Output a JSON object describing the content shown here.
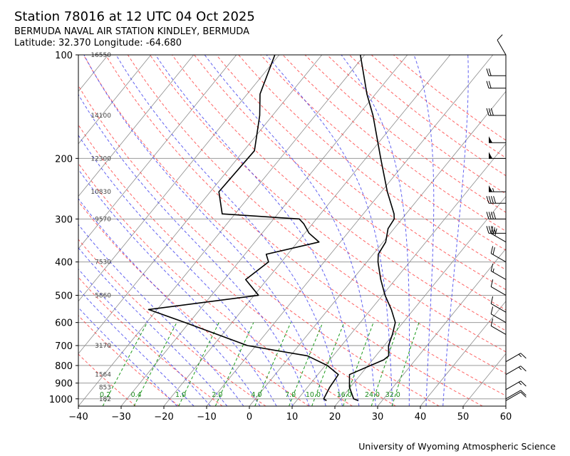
{
  "header": {
    "title": "Station 78016 at 12 UTC 04 Oct 2025",
    "station_name": "BERMUDA NAVAL AIR STATION KINDLEY, BERMUDA",
    "coordinates": "Latitude: 32.370 Longitude: -64.680"
  },
  "footer": {
    "credit": "University of Wyoming Atmospheric Science"
  },
  "chart_data": {
    "type": "skew-t log-p",
    "x_axis": {
      "range": [
        -40,
        60
      ],
      "ticks": [
        -40,
        -30,
        -20,
        -10,
        0,
        10,
        20,
        30,
        40,
        50,
        60
      ]
    },
    "y_axis": {
      "scale": "log",
      "range": [
        1050,
        100
      ],
      "ticks": [
        100,
        200,
        300,
        400,
        500,
        600,
        700,
        800,
        900,
        1000
      ]
    },
    "height_labels": [
      {
        "p": 100,
        "label": "16550"
      },
      {
        "p": 150,
        "label": "14100"
      },
      {
        "p": 200,
        "label": "12300"
      },
      {
        "p": 250,
        "label": "10830"
      },
      {
        "p": 300,
        "label": "9570"
      },
      {
        "p": 400,
        "label": "7530"
      },
      {
        "p": 500,
        "label": "5860"
      },
      {
        "p": 700,
        "label": "3170"
      },
      {
        "p": 850,
        "label": "1564"
      },
      {
        "p": 925,
        "label": "853"
      },
      {
        "p": 1000,
        "label": "182"
      }
    ],
    "mixing_ratio_labels": [
      "0.2",
      "0.4",
      "1.0",
      "2.0",
      "4.0",
      "7.0",
      "10.0",
      "16.0",
      "24.0",
      "32.0"
    ],
    "temperature": [
      {
        "p": 1012,
        "t": 24.4
      },
      {
        "p": 1000,
        "t": 23.0
      },
      {
        "p": 925,
        "t": 19.8
      },
      {
        "p": 850,
        "t": 17.4
      },
      {
        "p": 770,
        "t": 22.6
      },
      {
        "p": 750,
        "t": 23.0
      },
      {
        "p": 700,
        "t": 21.0
      },
      {
        "p": 650,
        "t": 19.8
      },
      {
        "p": 600,
        "t": 18.2
      },
      {
        "p": 550,
        "t": 14.8
      },
      {
        "p": 500,
        "t": 10.6
      },
      {
        "p": 450,
        "t": 6.6
      },
      {
        "p": 400,
        "t": 2.6
      },
      {
        "p": 380,
        "t": 1.2
      },
      {
        "p": 350,
        "t": 0.6
      },
      {
        "p": 320,
        "t": -1.4
      },
      {
        "p": 300,
        "t": -1.8
      },
      {
        "p": 290,
        "t": -2.8
      },
      {
        "p": 250,
        "t": -8.6
      },
      {
        "p": 200,
        "t": -16.5
      },
      {
        "p": 150,
        "t": -26.5
      },
      {
        "p": 130,
        "t": -32.0
      },
      {
        "p": 100,
        "t": -41.0
      }
    ],
    "dewpoint": [
      {
        "p": 1012,
        "t": 17.0
      },
      {
        "p": 1000,
        "t": 16.0
      },
      {
        "p": 925,
        "t": 15.2
      },
      {
        "p": 850,
        "t": 14.8
      },
      {
        "p": 800,
        "t": 10.5
      },
      {
        "p": 750,
        "t": 4.0
      },
      {
        "p": 700,
        "t": -12.0
      },
      {
        "p": 600,
        "t": -31.0
      },
      {
        "p": 550,
        "t": -42.0
      },
      {
        "p": 500,
        "t": -19.0
      },
      {
        "p": 450,
        "t": -25.0
      },
      {
        "p": 400,
        "t": -23.0
      },
      {
        "p": 380,
        "t": -25.0
      },
      {
        "p": 350,
        "t": -15.0
      },
      {
        "p": 330,
        "t": -19.0
      },
      {
        "p": 310,
        "t": -22.0
      },
      {
        "p": 300,
        "t": -24.0
      },
      {
        "p": 290,
        "t": -43.0
      },
      {
        "p": 250,
        "t": -48.0
      },
      {
        "p": 190,
        "t": -47.5
      },
      {
        "p": 150,
        "t": -53.0
      },
      {
        "p": 130,
        "t": -57.0
      },
      {
        "p": 100,
        "t": -61.0
      }
    ],
    "wind_barbs": [
      {
        "p": 1012,
        "speed": 10,
        "dir": 60
      },
      {
        "p": 1000,
        "speed": 10,
        "dir": 60
      },
      {
        "p": 940,
        "speed": 15,
        "dir": 60
      },
      {
        "p": 850,
        "speed": 15,
        "dir": 60
      },
      {
        "p": 780,
        "speed": 15,
        "dir": 60
      },
      {
        "p": 650,
        "speed": 10,
        "dir": 300
      },
      {
        "p": 600,
        "speed": 10,
        "dir": 300
      },
      {
        "p": 560,
        "speed": 10,
        "dir": 300
      },
      {
        "p": 500,
        "speed": 10,
        "dir": 300
      },
      {
        "p": 450,
        "speed": 15,
        "dir": 300
      },
      {
        "p": 400,
        "speed": 20,
        "dir": 300
      },
      {
        "p": 350,
        "speed": 30,
        "dir": 300
      },
      {
        "p": 330,
        "speed": 35,
        "dir": 270
      },
      {
        "p": 300,
        "speed": 40,
        "dir": 270
      },
      {
        "p": 270,
        "speed": 40,
        "dir": 270
      },
      {
        "p": 250,
        "speed": 55,
        "dir": 270
      },
      {
        "p": 200,
        "speed": 50,
        "dir": 270
      },
      {
        "p": 180,
        "speed": 50,
        "dir": 270
      },
      {
        "p": 150,
        "speed": 30,
        "dir": 270
      },
      {
        "p": 125,
        "speed": 20,
        "dir": 270
      },
      {
        "p": 115,
        "speed": 20,
        "dir": 270
      },
      {
        "p": 100,
        "speed": 10,
        "dir": 330
      }
    ],
    "colors": {
      "temperature": "#000000",
      "dewpoint": "#000000",
      "isotherms": "#8c8c8c",
      "dry_adiabats": "#ff3030",
      "moist_adiabats": "#3a3aee",
      "mixing_ratio": "#1a9a1a",
      "isobars": "#8c8c8c"
    }
  }
}
